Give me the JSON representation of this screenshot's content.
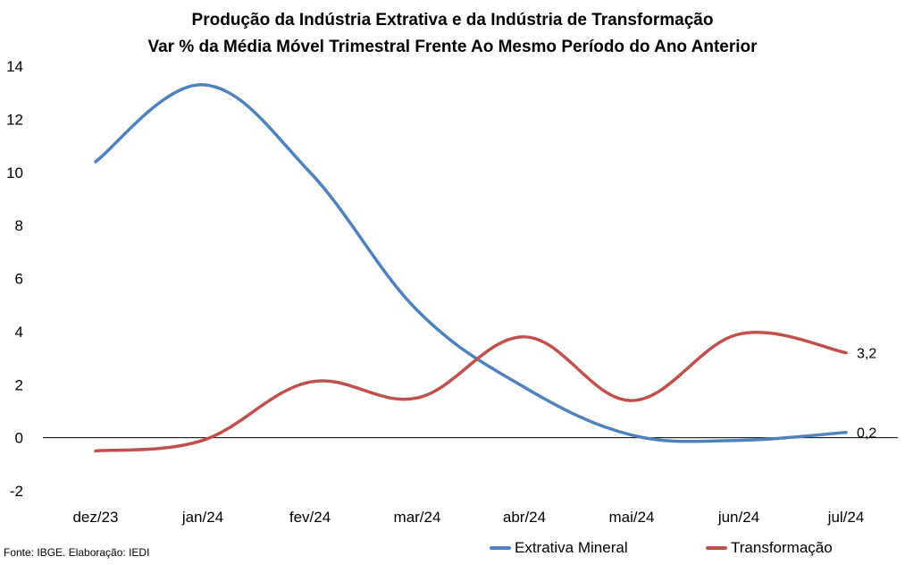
{
  "chart_data": {
    "type": "line",
    "title": "Produção da Indústria Extrativa e da Indústria de Transformação",
    "subtitle": "Var % da Média Móvel Trimestral Frente Ao Mesmo Período do Ano Anterior",
    "categories": [
      "dez/23",
      "jan/24",
      "fev/24",
      "mar/24",
      "abr/24",
      "mai/24",
      "jun/24",
      "jul/24"
    ],
    "series": [
      {
        "name": "Extrativa Mineral",
        "color": "#4f81bd",
        "values": [
          10.4,
          13.3,
          10.0,
          4.8,
          1.9,
          0.1,
          -0.1,
          0.2
        ],
        "end_label": "0,2"
      },
      {
        "name": "Transformação",
        "color": "#c0504d",
        "values": [
          -0.5,
          -0.1,
          2.1,
          1.5,
          3.8,
          1.4,
          3.9,
          3.2
        ],
        "end_label": "3,2"
      }
    ],
    "yticks": [
      "14",
      "12",
      "10",
      "8",
      "6",
      "4",
      "2",
      "0",
      "-2"
    ],
    "ylim": [
      -2,
      14
    ],
    "grid": false,
    "legend_position": "bottom-right"
  },
  "footer": {
    "source": "Fonte: IBGE. Elaboração: IEDI"
  }
}
